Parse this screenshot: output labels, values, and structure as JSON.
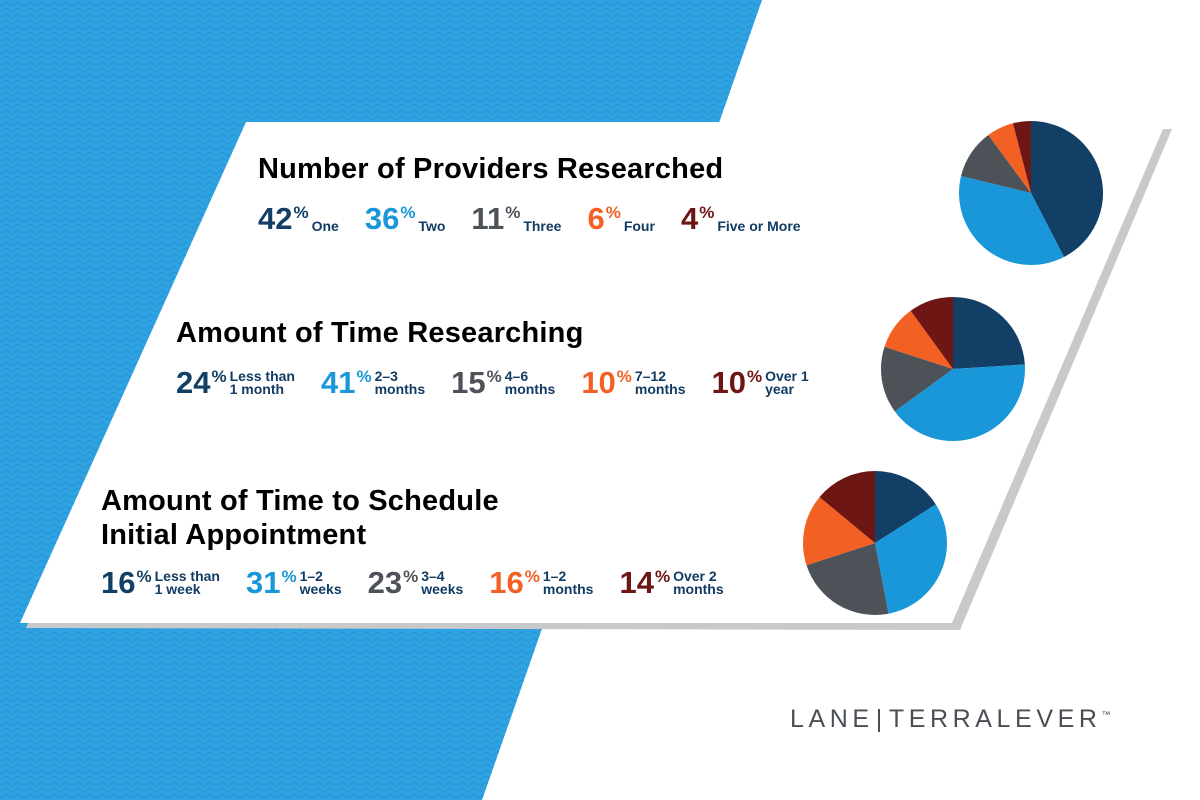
{
  "colors": {
    "navy": "#123f66",
    "blue": "#1a97d8",
    "gray": "#4d5259",
    "orange": "#f26024",
    "maroon": "#6d1613",
    "bg_blue": "#2ea3e3",
    "card": "#ffffff",
    "text": "#123b63"
  },
  "logo": {
    "left": "LANE",
    "right": "TERRALEVER",
    "tm": "™"
  },
  "chart_data": [
    {
      "type": "pie",
      "title": "Number of Providers Researched",
      "slices": [
        {
          "value": 42,
          "display": "42",
          "label": "One",
          "color": "#123f66"
        },
        {
          "value": 36,
          "display": "36",
          "label": "Two",
          "color": "#1a97d8"
        },
        {
          "value": 11,
          "display": "11",
          "label": "Three",
          "color": "#4d5259"
        },
        {
          "value": 6,
          "display": "6",
          "label": "Four",
          "color": "#f26024"
        },
        {
          "value": 4,
          "display": "4",
          "label": "Five or More",
          "color": "#6d1613"
        }
      ]
    },
    {
      "type": "pie",
      "title": "Amount of Time Researching",
      "slices": [
        {
          "value": 24,
          "display": "24",
          "label": "Less than\n1 month",
          "color": "#123f66"
        },
        {
          "value": 41,
          "display": "41",
          "label": "2–3\nmonths",
          "color": "#1a97d8"
        },
        {
          "value": 15,
          "display": "15",
          "label": "4–6\nmonths",
          "color": "#4d5259"
        },
        {
          "value": 10,
          "display": "10",
          "label": "7–12\nmonths",
          "color": "#f26024"
        },
        {
          "value": 10,
          "display": "10",
          "label": "Over 1\nyear",
          "color": "#6d1613"
        }
      ]
    },
    {
      "type": "pie",
      "title": "Amount of Time to Schedule\nInitial Appointment",
      "slices": [
        {
          "value": 16,
          "display": "16",
          "label": "Less than\n1 week",
          "color": "#123f66"
        },
        {
          "value": 31,
          "display": "31",
          "label": "1–2\nweeks",
          "color": "#1a97d8"
        },
        {
          "value": 23,
          "display": "23",
          "label": "3–4\nweeks",
          "color": "#4d5259"
        },
        {
          "value": 16,
          "display": "16",
          "label": "1–2\nmonths",
          "color": "#f26024"
        },
        {
          "value": 14,
          "display": "14",
          "label": "Over 2\nmonths",
          "color": "#6d1613"
        }
      ]
    }
  ]
}
